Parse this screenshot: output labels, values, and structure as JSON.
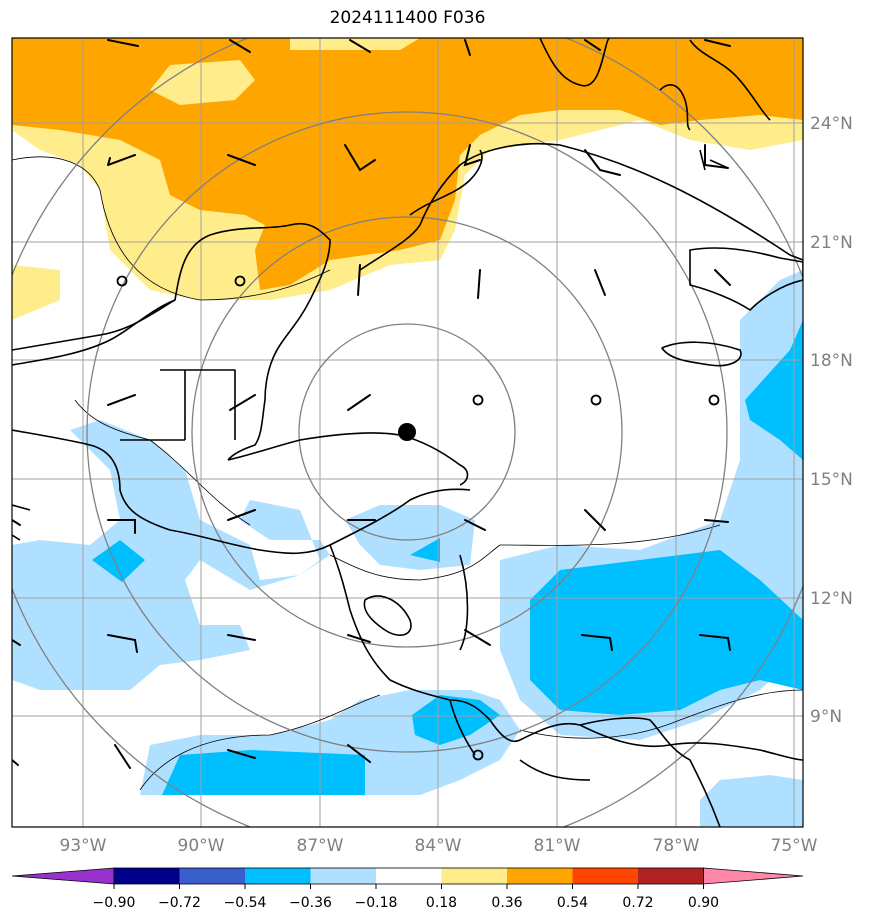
{
  "title": "2024111400 F036",
  "map": {
    "lat_labels": [
      "24°N",
      "21°N",
      "18°N",
      "15°N",
      "12°N",
      "9°N"
    ],
    "lon_labels": [
      "93°W",
      "90°W",
      "87°W",
      "84°W",
      "81°W",
      "78°W",
      "75°W"
    ],
    "storm_center": {
      "lon": -84.7,
      "lat": 16.2
    },
    "colors": {
      "ocean": "#ffffff",
      "coast": "#000000",
      "grid": "#999999",
      "range_rings": "#808080"
    }
  },
  "colorbar": {
    "tick_labels": [
      "−0.90",
      "−0.72",
      "−0.54",
      "−0.36",
      "−0.18",
      "0.18",
      "0.36",
      "0.54",
      "0.72",
      "0.90"
    ],
    "colors": [
      "#9932cc",
      "#00008b",
      "#3a5fcd",
      "#00bfff",
      "#b0e0ff",
      "#ffffff",
      "#ffec8b",
      "#ffa500",
      "#ff4500",
      "#b22222",
      "#ff88aa"
    ]
  }
}
